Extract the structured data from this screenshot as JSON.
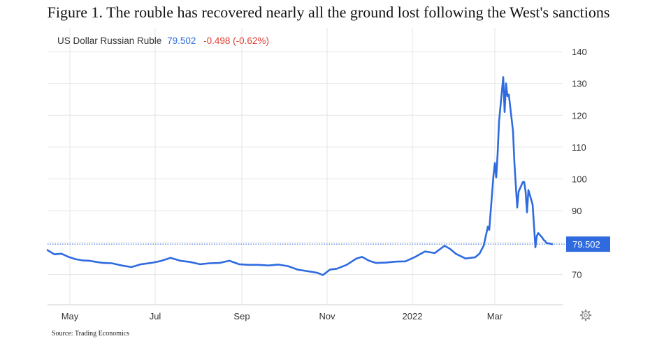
{
  "figure_title": "Figure 1. The rouble has recovered nearly all the ground lost following the West's sanctions",
  "source_note": "Source: Trading Economics",
  "header": {
    "instrument": "US Dollar Russian Ruble",
    "price": "79.502",
    "change": "-0.498 (-0.62%)"
  },
  "colors": {
    "line": "#2f6bdf",
    "price": "#2f6bdf",
    "change": "#e03c31",
    "grid": "#e6e6e6",
    "badge": "#2f6bdf"
  },
  "icons": {
    "settings": "gear-icon"
  },
  "chart_data": {
    "type": "line",
    "title": "",
    "xlabel": "",
    "ylabel": "",
    "ylim": [
      60,
      145
    ],
    "yticks": [
      70,
      80,
      90,
      100,
      110,
      120,
      130,
      140
    ],
    "ytick_labels": [
      "70",
      "",
      "90",
      "100",
      "110",
      "120",
      "130",
      "140"
    ],
    "xtick_labels": [
      "May",
      "Jul",
      "Sep",
      "Nov",
      "2022",
      "Mar"
    ],
    "grid": true,
    "last_value": 79.502,
    "last_value_label": "79.502",
    "series": [
      {
        "name": "US Dollar Russian Ruble",
        "x": [
          "2021-04-15",
          "2021-04-20",
          "2021-04-25",
          "2021-04-30",
          "2021-05-05",
          "2021-05-10",
          "2021-05-15",
          "2021-05-20",
          "2021-05-25",
          "2021-05-31",
          "2021-06-07",
          "2021-06-14",
          "2021-06-21",
          "2021-06-28",
          "2021-07-05",
          "2021-07-12",
          "2021-07-19",
          "2021-07-26",
          "2021-08-02",
          "2021-08-09",
          "2021-08-16",
          "2021-08-23",
          "2021-08-30",
          "2021-09-06",
          "2021-09-13",
          "2021-09-20",
          "2021-09-27",
          "2021-10-04",
          "2021-10-11",
          "2021-10-18",
          "2021-10-25",
          "2021-10-29",
          "2021-11-03",
          "2021-11-08",
          "2021-11-15",
          "2021-11-22",
          "2021-11-26",
          "2021-12-01",
          "2021-12-06",
          "2021-12-13",
          "2021-12-20",
          "2021-12-27",
          "2022-01-03",
          "2022-01-10",
          "2022-01-17",
          "2022-01-24",
          "2022-01-28",
          "2022-02-01",
          "2022-02-08",
          "2022-02-15",
          "2022-02-18",
          "2022-02-21",
          "2022-02-24",
          "2022-02-25",
          "2022-02-28",
          "2022-03-01",
          "2022-03-02",
          "2022-03-03",
          "2022-03-04",
          "2022-03-07",
          "2022-03-08",
          "2022-03-09",
          "2022-03-10",
          "2022-03-11",
          "2022-03-14",
          "2022-03-15",
          "2022-03-16",
          "2022-03-17",
          "2022-03-18",
          "2022-03-21",
          "2022-03-22",
          "2022-03-23",
          "2022-03-24",
          "2022-03-25",
          "2022-03-28",
          "2022-03-29",
          "2022-03-30",
          "2022-03-31",
          "2022-04-01",
          "2022-04-04",
          "2022-04-05",
          "2022-04-06",
          "2022-04-07",
          "2022-04-08",
          "2022-04-11"
        ],
        "values": [
          77.6,
          76.3,
          76.5,
          75.5,
          74.8,
          74.4,
          74.3,
          73.9,
          73.6,
          73.5,
          72.8,
          72.3,
          73.2,
          73.6,
          74.2,
          75.2,
          74.3,
          73.9,
          73.2,
          73.5,
          73.6,
          74.3,
          73.2,
          73.0,
          73.0,
          72.8,
          73.1,
          72.6,
          71.5,
          71.0,
          70.5,
          69.8,
          71.5,
          71.8,
          73.0,
          75.0,
          75.5,
          74.3,
          73.6,
          73.7,
          74.0,
          74.1,
          75.5,
          77.2,
          76.7,
          79.0,
          78.0,
          76.5,
          75.0,
          75.4,
          76.5,
          79.0,
          85.0,
          84.0,
          101.0,
          105.0,
          100.5,
          108.0,
          118.0,
          132.0,
          121.0,
          130.0,
          126.0,
          126.5,
          115.0,
          105.0,
          98.0,
          91.0,
          96.0,
          99.0,
          99.0,
          96.0,
          89.5,
          96.5,
          92.0,
          85.5,
          78.5,
          82.0,
          83.0,
          81.5,
          80.8,
          80.5,
          79.8,
          79.8,
          79.502
        ]
      }
    ]
  }
}
